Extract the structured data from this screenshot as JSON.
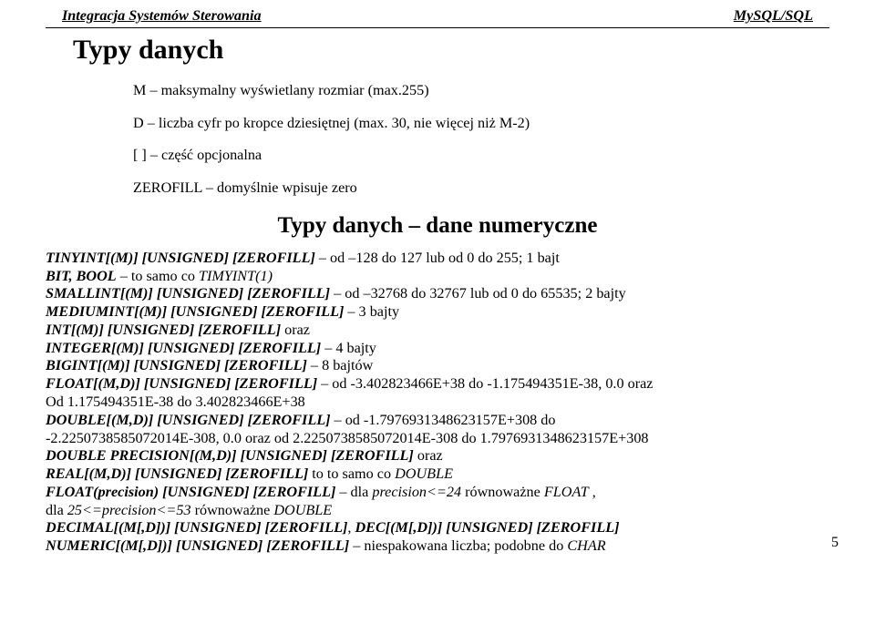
{
  "header": {
    "left": "Integracja Systemów Sterowania",
    "right": "MySQL/SQL"
  },
  "title": "Typy danych",
  "intro": {
    "l1": "M – maksymalny wyświetlany rozmiar (max.255)",
    "l2": "D – liczba cyfr po kropce dziesiętnej (max. 30, nie więcej niż M-2)",
    "l3": "[ ] – część opcjonalna",
    "l4": "ZEROFILL – domyślnie wpisuje zero"
  },
  "subtitle": "Typy danych – dane numeryczne",
  "lines": {
    "tinyint_bi": "TINYINT[(M)] [UNSIGNED] [ZEROFILL]",
    "tinyint_rest": " – od –128 do 127 lub od 0 do 255; 1 bajt",
    "bitbool_bi": "BIT, BOOL",
    "bitbool_mid": " – to samo co ",
    "bitbool_i": "TIMYINT(1)",
    "smallint_bi": "SMALLINT[(M)] [UNSIGNED] [ZEROFILL]",
    "smallint_rest": " – od –32768 do 32767 lub od 0 do 65535; 2 bajty",
    "mediumint_bi": "MEDIUMINT[(M)] [UNSIGNED] [ZEROFILL]",
    "mediumint_rest": " – 3 bajty",
    "int_bi": "INT[(M)] [UNSIGNED] [ZEROFILL]",
    "int_rest": " oraz",
    "integer_bi": "INTEGER[(M)] [UNSIGNED] [ZEROFILL]",
    "integer_rest": " – 4 bajty",
    "bigint_bi": "BIGINT[(M)] [UNSIGNED] [ZEROFILL]",
    "bigint_rest": " – 8 bajtów",
    "float_bi": "FLOAT[(M,D)] [UNSIGNED] [ZEROFILL]",
    "float_rest": " – od -3.402823466E+38 do -1.175494351E-38, 0.0 oraz",
    "float_indent": "Od 1.175494351E-38 do 3.402823466E+38",
    "double_bi": "DOUBLE[(M,D)] [UNSIGNED] [ZEROFILL]",
    "double_rest": " – od -1.7976931348623157E+308 do",
    "double_indent": "-2.2250738585072014E-308, 0.0 oraz od  2.2250738585072014E-308 do 1.7976931348623157E+308",
    "doubleprec_bi": "DOUBLE PRECISION[(M,D)] [UNSIGNED] [ZEROFILL]",
    "doubleprec_rest": " oraz",
    "real_bi": "REAL[(M,D)] [UNSIGNED] [ZEROFILL]",
    "real_mid": " to to samo co ",
    "real_i": "DOUBLE",
    "floatprec_bi": "FLOAT(precision) [UNSIGNED] [ZEROFILL]",
    "floatprec_mid1": " – dla ",
    "floatprec_i1": "precision<=24",
    "floatprec_mid2": " równoważne ",
    "floatprec_i2": "FLOAT",
    "floatprec_end": " ,",
    "floatprec_indent_pre": "dla ",
    "floatprec_indent_i1": "25<=precision<=53",
    "floatprec_indent_mid": " równoważne ",
    "floatprec_indent_i2": "DOUBLE",
    "decimal_bi1": "DECIMAL[(M[,D])] [UNSIGNED] [ZEROFILL]",
    "decimal_sep": ", ",
    "decimal_bi2": "DEC[(M[,D])] [UNSIGNED] [ZEROFILL]",
    "numeric_bi": "NUMERIC[(M[,D])] [UNSIGNED] [ZEROFILL]",
    "numeric_mid": " – niespakowana liczba; podobne do ",
    "numeric_i": "CHAR"
  },
  "pagenum": "5"
}
